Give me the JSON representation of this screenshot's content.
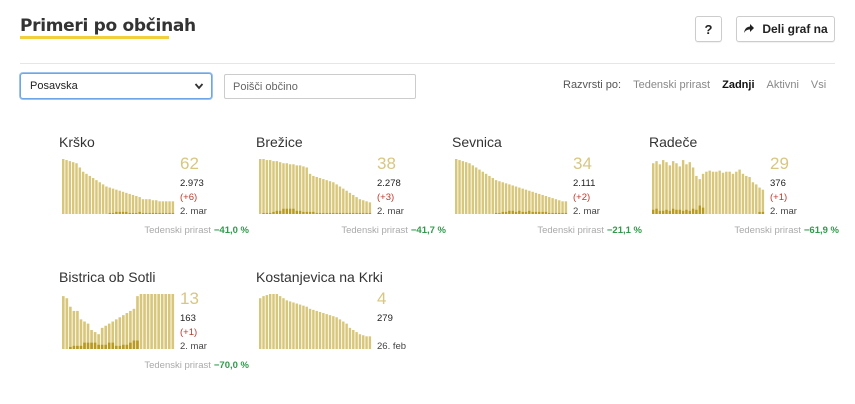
{
  "header": {
    "title": "Primeri po občinah",
    "help_label": "?",
    "share_label": "Deli graf na"
  },
  "filters": {
    "region_selected": "Posavska",
    "search_placeholder": "Poišči občino"
  },
  "sort": {
    "label": "Razvrsti po:",
    "options": [
      "Tedenski prirast",
      "Zadnji",
      "Aktivni",
      "Vsi"
    ],
    "active": "Zadnji"
  },
  "colors": {
    "accent": "#f2d03b",
    "bar_light": "#d8c77a",
    "bar_dark": "#b89a1e",
    "positive": "#2e9b4a",
    "negative_delta": "#c0392b"
  },
  "cards": [
    {
      "name": "Krško",
      "active": "62",
      "total": "2.973",
      "delta": "(+6)",
      "date": "2. mar",
      "weekly_label": "Tedenski prirast",
      "weekly_value": "−41,0 %",
      "bars": [
        52,
        51,
        50,
        49,
        48,
        44,
        40,
        38,
        36,
        34,
        32,
        30,
        28,
        26,
        25,
        24,
        23,
        22,
        21,
        20,
        19,
        18,
        17,
        16,
        14,
        14,
        14,
        13,
        13,
        12,
        12,
        12,
        12,
        12
      ],
      "dark": [
        0,
        0,
        0,
        0,
        0,
        0,
        0,
        0,
        0,
        0,
        0,
        0,
        0,
        0,
        1,
        1,
        2,
        2,
        2,
        2,
        1,
        1,
        1,
        2,
        1,
        1,
        1,
        1,
        1,
        1,
        1,
        1,
        1,
        1
      ]
    },
    {
      "name": "Brežice",
      "active": "38",
      "total": "2.278",
      "delta": "(+3)",
      "date": "2. mar",
      "weekly_label": "Tedenski prirast",
      "weekly_value": "−41,7 %",
      "bars": [
        52,
        52,
        51,
        51,
        50,
        50,
        49,
        48,
        48,
        47,
        47,
        46,
        46,
        45,
        44,
        38,
        36,
        35,
        34,
        33,
        32,
        31,
        30,
        28,
        26,
        24,
        22,
        20,
        18,
        16,
        14,
        13,
        12,
        11
      ],
      "dark": [
        0,
        1,
        1,
        1,
        2,
        3,
        3,
        5,
        5,
        5,
        5,
        3,
        3,
        2,
        2,
        2,
        2,
        1,
        1,
        1,
        1,
        1,
        1,
        1,
        1,
        1,
        1,
        1,
        1,
        1,
        1,
        1,
        1,
        1
      ]
    },
    {
      "name": "Sevnica",
      "active": "34",
      "total": "2.111",
      "delta": "(+2)",
      "date": "2. mar",
      "weekly_label": "Tedenski prirast",
      "weekly_value": "−21,1 %",
      "bars": [
        52,
        51,
        50,
        49,
        48,
        46,
        44,
        42,
        40,
        38,
        36,
        34,
        32,
        31,
        30,
        29,
        28,
        27,
        26,
        25,
        24,
        23,
        22,
        21,
        20,
        19,
        18,
        17,
        16,
        15,
        14,
        13,
        12,
        12
      ],
      "dark": [
        0,
        0,
        0,
        0,
        0,
        0,
        0,
        0,
        0,
        0,
        0,
        0,
        1,
        1,
        2,
        2,
        3,
        3,
        2,
        3,
        2,
        2,
        3,
        2,
        2,
        2,
        2,
        2,
        1,
        1,
        1,
        1,
        1,
        1
      ]
    },
    {
      "name": "Radeče",
      "active": "29",
      "total": "376",
      "delta": "(+1)",
      "date": "2. mar",
      "weekly_label": "Tedenski prirast",
      "weekly_value": "−61,9 %",
      "bars": [
        48,
        50,
        47,
        51,
        49,
        46,
        50,
        48,
        45,
        51,
        47,
        49,
        44,
        36,
        33,
        38,
        40,
        41,
        40,
        40,
        41,
        39,
        40,
        40,
        38,
        40,
        42,
        38,
        36,
        35,
        30,
        28,
        25,
        23
      ],
      "dark": [
        4,
        5,
        3,
        3,
        4,
        3,
        5,
        4,
        4,
        3,
        4,
        3,
        5,
        4,
        8,
        6,
        0,
        0,
        0,
        0,
        0,
        0,
        0,
        0,
        0,
        0,
        0,
        0,
        0,
        0,
        0,
        0,
        2,
        2
      ]
    },
    {
      "name": "Bistrica ob Sotli",
      "active": "13",
      "total": "163",
      "delta": "(+1)",
      "date": "2. mar",
      "weekly_label": "Tedenski prirast",
      "weekly_value": "−70,0 %",
      "bars": [
        50,
        48,
        40,
        36,
        36,
        28,
        26,
        24,
        18,
        16,
        14,
        20,
        22,
        24,
        26,
        28,
        30,
        32,
        34,
        36,
        38,
        50,
        52,
        52,
        52,
        52,
        52,
        52,
        52,
        52,
        52,
        52
      ],
      "dark": [
        0,
        0,
        2,
        3,
        3,
        3,
        6,
        6,
        6,
        6,
        4,
        4,
        4,
        6,
        6,
        3,
        3,
        4,
        4,
        6,
        8,
        8,
        0,
        0,
        0,
        0,
        0,
        0,
        0,
        0,
        0,
        0
      ]
    },
    {
      "name": "Kostanjevica na Krki",
      "active": "4",
      "total": "279",
      "delta": "",
      "date": "26. feb",
      "weekly_label": "",
      "weekly_value": "",
      "bars": [
        48,
        50,
        51,
        52,
        52,
        52,
        50,
        48,
        46,
        45,
        44,
        43,
        42,
        41,
        40,
        38,
        37,
        36,
        35,
        34,
        33,
        32,
        31,
        30,
        28,
        26,
        24,
        20,
        18,
        16,
        14,
        13,
        12,
        12
      ],
      "dark": [
        0,
        0,
        0,
        0,
        0,
        0,
        0,
        0,
        0,
        0,
        0,
        0,
        0,
        0,
        0,
        0,
        0,
        0,
        0,
        0,
        0,
        0,
        0,
        0,
        0,
        0,
        0,
        0,
        0,
        0,
        0,
        0,
        0,
        0
      ]
    }
  ]
}
